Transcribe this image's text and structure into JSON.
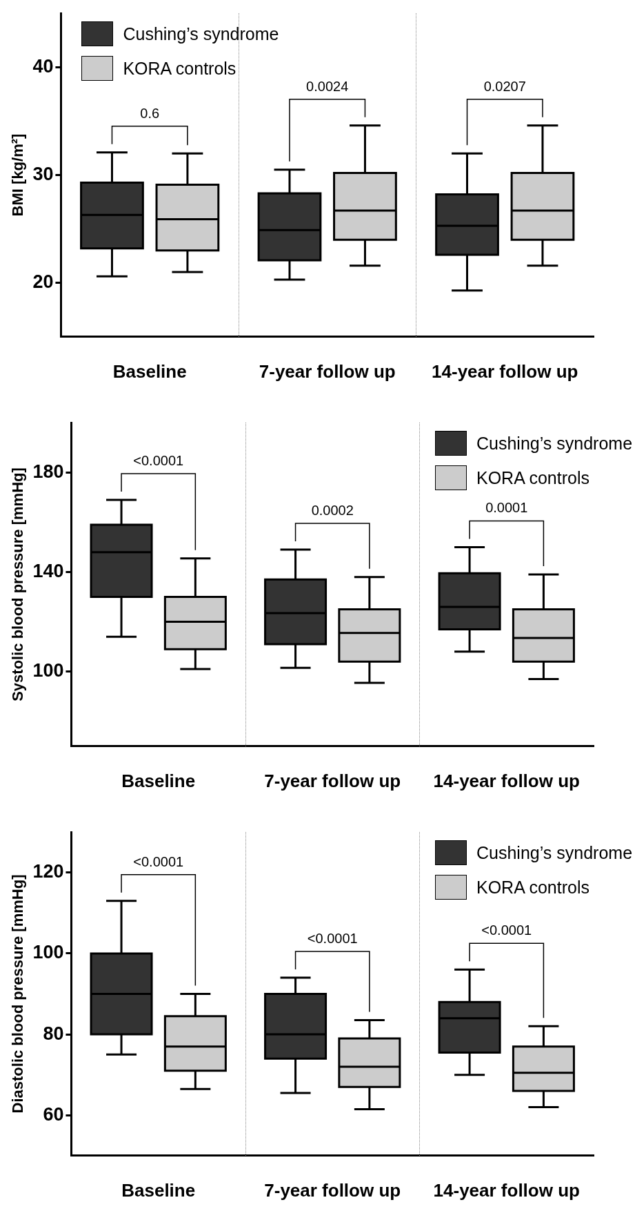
{
  "chart_data": [
    {
      "type": "box",
      "ylabel": "BMI [kg/m²]",
      "categories": [
        "Baseline",
        "7-year follow up",
        "14-year follow up"
      ],
      "ylim": [
        15,
        45
      ],
      "yticks": [
        20,
        30,
        40
      ],
      "legend": "top left",
      "series": [
        {
          "name": "Cushing’s syndrome",
          "color": "#333333",
          "boxes": [
            {
              "low": 20.6,
              "q1": 23.2,
              "median": 26.3,
              "q3": 29.3,
              "high": 32.1
            },
            {
              "low": 20.3,
              "q1": 22.1,
              "median": 24.9,
              "q3": 28.3,
              "high": 30.5
            },
            {
              "low": 19.3,
              "q1": 22.6,
              "median": 25.3,
              "q3": 28.2,
              "high": 32.0
            }
          ]
        },
        {
          "name": "KORA controls",
          "color": "#cccccc",
          "boxes": [
            {
              "low": 21.0,
              "q1": 23.0,
              "median": 25.9,
              "q3": 29.1,
              "high": 32.0
            },
            {
              "low": 21.6,
              "q1": 24.0,
              "median": 26.7,
              "q3": 30.2,
              "high": 34.6
            },
            {
              "low": 21.6,
              "q1": 24.0,
              "median": 26.7,
              "q3": 30.2,
              "high": 34.6
            }
          ]
        }
      ],
      "annotations": [
        "0.6",
        "0.0024",
        "0.0207"
      ]
    },
    {
      "type": "box",
      "ylabel": "Systolic blood pressure [mmHg]",
      "categories": [
        "Baseline",
        "7-year follow up",
        "14-year follow up"
      ],
      "ylim": [
        70,
        200
      ],
      "yticks": [
        100,
        140,
        180
      ],
      "legend": "top right",
      "series": [
        {
          "name": "Cushing’s syndrome",
          "color": "#333333",
          "boxes": [
            {
              "low": 114,
              "q1": 130,
              "median": 148,
              "q3": 159,
              "high": 169
            },
            {
              "low": 101.5,
              "q1": 111,
              "median": 123.5,
              "q3": 137,
              "high": 149
            },
            {
              "low": 108,
              "q1": 117,
              "median": 126,
              "q3": 139.5,
              "high": 150
            }
          ]
        },
        {
          "name": "KORA controls",
          "color": "#cccccc",
          "boxes": [
            {
              "low": 101,
              "q1": 109,
              "median": 120,
              "q3": 130,
              "high": 145.5
            },
            {
              "low": 95.5,
              "q1": 104,
              "median": 115.5,
              "q3": 125,
              "high": 138
            },
            {
              "low": 97,
              "q1": 104,
              "median": 113.5,
              "q3": 125,
              "high": 139
            }
          ]
        }
      ],
      "annotations": [
        "<0.0001",
        "0.0002",
        "0.0001"
      ]
    },
    {
      "type": "box",
      "ylabel": "Diastolic blood pressure [mmHg]",
      "categories": [
        "Baseline",
        "7-year follow up",
        "14-year follow up"
      ],
      "ylim": [
        50,
        130
      ],
      "yticks": [
        60,
        80,
        100,
        120
      ],
      "legend": "top right",
      "series": [
        {
          "name": "Cushing’s syndrome",
          "color": "#333333",
          "boxes": [
            {
              "low": 75,
              "q1": 80,
              "median": 90,
              "q3": 100,
              "high": 113
            },
            {
              "low": 65.5,
              "q1": 74,
              "median": 80,
              "q3": 90,
              "high": 94
            },
            {
              "low": 70,
              "q1": 75.5,
              "median": 84,
              "q3": 88,
              "high": 96
            }
          ]
        },
        {
          "name": "KORA controls",
          "color": "#cccccc",
          "boxes": [
            {
              "low": 66.5,
              "q1": 71,
              "median": 77,
              "q3": 84.5,
              "high": 90
            },
            {
              "low": 61.5,
              "q1": 67,
              "median": 72,
              "q3": 79,
              "high": 83.5
            },
            {
              "low": 62,
              "q1": 66,
              "median": 70.5,
              "q3": 77,
              "high": 82
            }
          ]
        }
      ],
      "annotations": [
        "<0.0001",
        "<0.0001",
        "<0.0001"
      ]
    }
  ]
}
